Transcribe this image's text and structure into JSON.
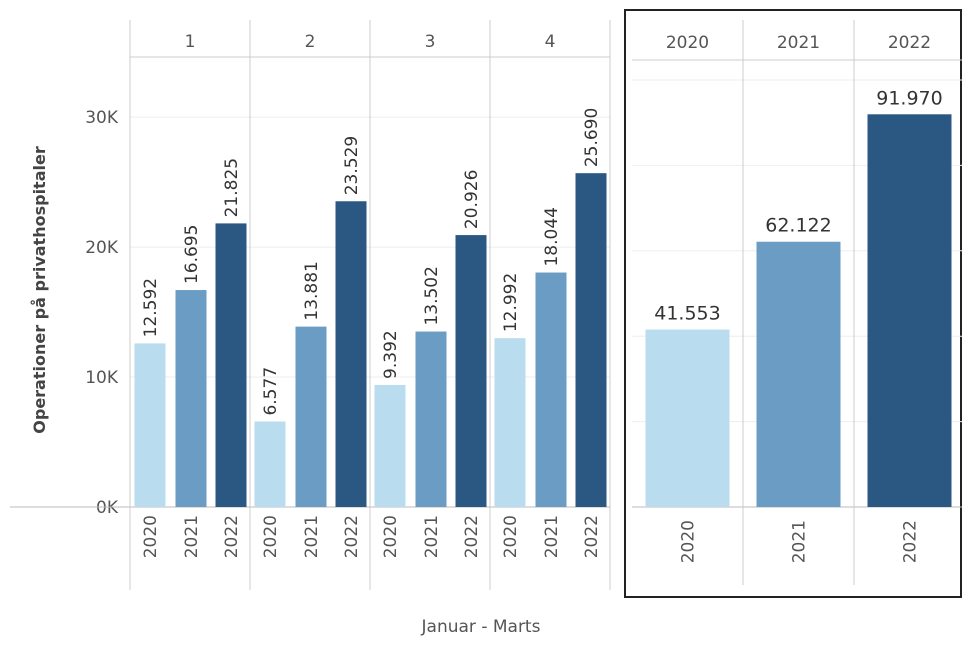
{
  "chart_data": [
    {
      "type": "grouped-bar",
      "ylabel": "Operationer på privathospitaler",
      "xlabel": "Januar - Marts",
      "categories": [
        "1",
        "2",
        "3",
        "4"
      ],
      "series": [
        {
          "name": "2020",
          "color": "#b9dcee",
          "values": [
            12592,
            6577,
            9392,
            12992
          ],
          "value_labels": [
            "12.592",
            "6.577",
            "9.392",
            "12.992"
          ]
        },
        {
          "name": "2021",
          "color": "#6a9cc4",
          "values": [
            16695,
            13881,
            13502,
            18044
          ],
          "value_labels": [
            "16.695",
            "13.881",
            "13.502",
            "18.044"
          ]
        },
        {
          "name": "2022",
          "color": "#2b5783",
          "values": [
            21825,
            23529,
            20926,
            25690
          ],
          "value_labels": [
            "21.825",
            "23.529",
            "20.926",
            "25.690"
          ]
        }
      ],
      "ylim": [
        0,
        34400
      ],
      "yticks": [
        {
          "value": 0,
          "label": "0K"
        },
        {
          "value": 10000,
          "label": "10K"
        },
        {
          "value": 20000,
          "label": "20K"
        },
        {
          "value": 30000,
          "label": "30K"
        }
      ],
      "grid": true
    },
    {
      "type": "bar",
      "categories": [
        "2020",
        "2021",
        "2022"
      ],
      "values": [
        41553,
        62122,
        91970
      ],
      "value_labels": [
        "41.553",
        "62.122",
        "91.970"
      ],
      "colors": [
        "#b9dcee",
        "#6a9cc4",
        "#2b5783"
      ],
      "ylim": [
        0,
        100000
      ],
      "yticks": [
        0,
        20000,
        40000,
        60000,
        80000,
        100000
      ],
      "grid": true
    }
  ]
}
